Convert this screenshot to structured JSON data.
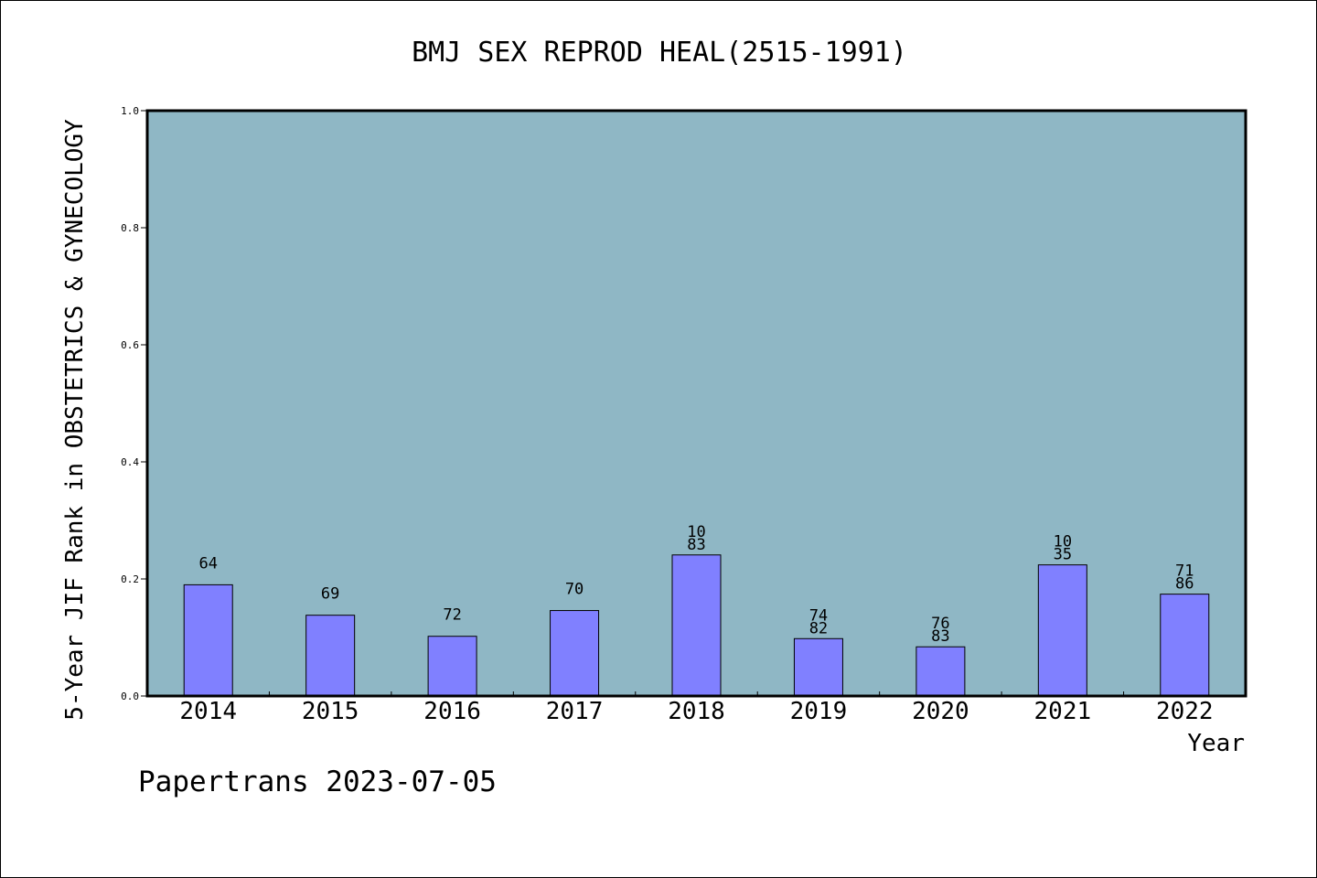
{
  "chart_data": {
    "type": "bar",
    "title": "BMJ SEX REPROD HEAL(2515-1991)",
    "xlabel": "Year",
    "ylabel": "5-Year JIF Rank in OBSTETRICS & GYNECOLOGY",
    "ylim": [
      0,
      1.0
    ],
    "yticks": [
      "0.0",
      "0.2",
      "0.4",
      "0.6",
      "0.8",
      "1.0"
    ],
    "grid": false,
    "categories": [
      "2014",
      "2015",
      "2016",
      "2017",
      "2018",
      "2019",
      "2020",
      "2021",
      "2022"
    ],
    "values": [
      0.19,
      0.138,
      0.102,
      0.146,
      0.241,
      0.098,
      0.084,
      0.224,
      0.174
    ],
    "bar_labels": [
      [
        "64"
      ],
      [
        "69"
      ],
      [
        "72"
      ],
      [
        "70"
      ],
      [
        "10",
        "83"
      ],
      [
        "74",
        "82"
      ],
      [
        "76",
        "83"
      ],
      [
        "10",
        "35"
      ],
      [
        "71",
        "86"
      ]
    ],
    "colors": {
      "plot_background": "#8fb7c5",
      "bar_fill": "#8080ff",
      "bar_stroke": "#000000"
    }
  },
  "footer": {
    "credit": "Papertrans 2023-07-05"
  }
}
